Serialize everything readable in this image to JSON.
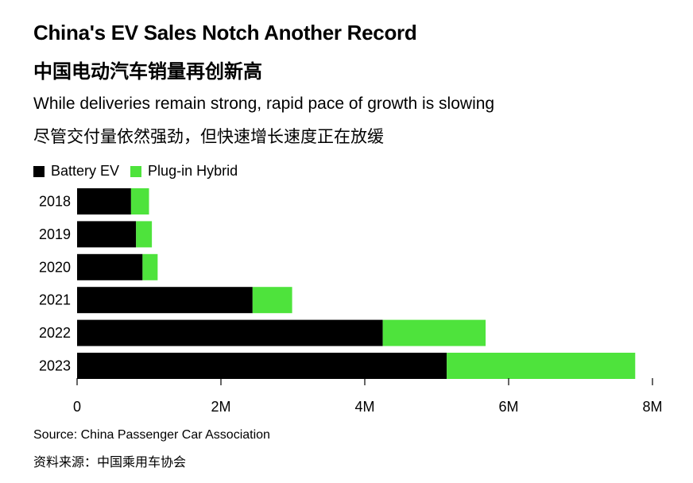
{
  "header": {
    "title": "China's EV Sales Notch Another Record",
    "title_cn": "中国电动汽车销量再创新高",
    "subtitle": "While deliveries remain strong, rapid pace of growth is slowing",
    "subtitle_cn": "尽管交付量依然强劲，但快速增长速度正在放缓"
  },
  "legend": {
    "items": [
      {
        "label": "Battery EV",
        "color": "#000000"
      },
      {
        "label": "Plug-in Hybrid",
        "color": "#4ee33c"
      }
    ]
  },
  "footer": {
    "source": "Source: China Passenger Car Association",
    "source_cn": "资料来源：中国乘用车协会"
  },
  "chart_data": {
    "type": "bar",
    "orientation": "horizontal",
    "stacked": true,
    "categories": [
      "2018",
      "2019",
      "2020",
      "2021",
      "2022",
      "2023"
    ],
    "series": [
      {
        "name": "Battery EV",
        "color": "#000000",
        "values": [
          0.75,
          0.82,
          0.91,
          2.44,
          4.25,
          5.14
        ]
      },
      {
        "name": "Plug-in Hybrid",
        "color": "#4ee33c",
        "values": [
          0.25,
          0.22,
          0.21,
          0.55,
          1.43,
          2.62
        ]
      }
    ],
    "xlim": [
      0,
      8
    ],
    "xticks": [
      0,
      2,
      4,
      6,
      8
    ],
    "xtick_labels": [
      "0",
      "2M",
      "4M",
      "6M",
      "8M"
    ],
    "unit": "millions",
    "grid": false,
    "legend_position": "top-left"
  }
}
